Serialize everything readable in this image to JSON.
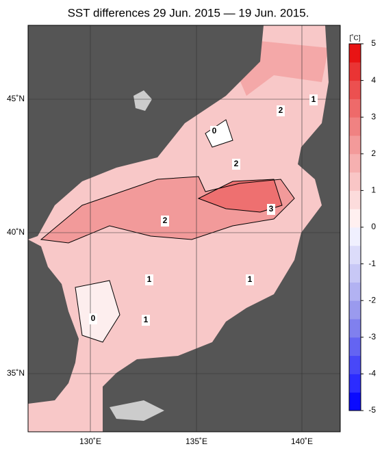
{
  "title": "SST differences 29 Jun. 2015 — 19 Jun. 2015.",
  "lat_labels": [
    "45˚N",
    "40˚N",
    "35˚N"
  ],
  "lon_labels": [
    "130˚E",
    "135˚E",
    "140˚E"
  ],
  "colorbar": {
    "unit": "[˚C]",
    "lim": [
      -5,
      5
    ],
    "ticks": [
      5,
      4,
      3,
      2,
      1,
      0,
      -1,
      -2,
      -3,
      -4,
      -5
    ],
    "colors": [
      "#0a0aff",
      "#2c2cff",
      "#4848f8",
      "#6464f2",
      "#8080ee",
      "#9a9aee",
      "#b2b2f2",
      "#c8c8f6",
      "#dcdcfa",
      "#f0f0fe",
      "#fff0f0",
      "#fcdcdc",
      "#f9c6c6",
      "#f6b0b0",
      "#f39a9a",
      "#f08282",
      "#ee6a6a",
      "#ec5050",
      "#ea3434",
      "#e81414"
    ]
  },
  "contour_labels": [
    1,
    2,
    0,
    2,
    3,
    2,
    1,
    1,
    0,
    1
  ]
}
